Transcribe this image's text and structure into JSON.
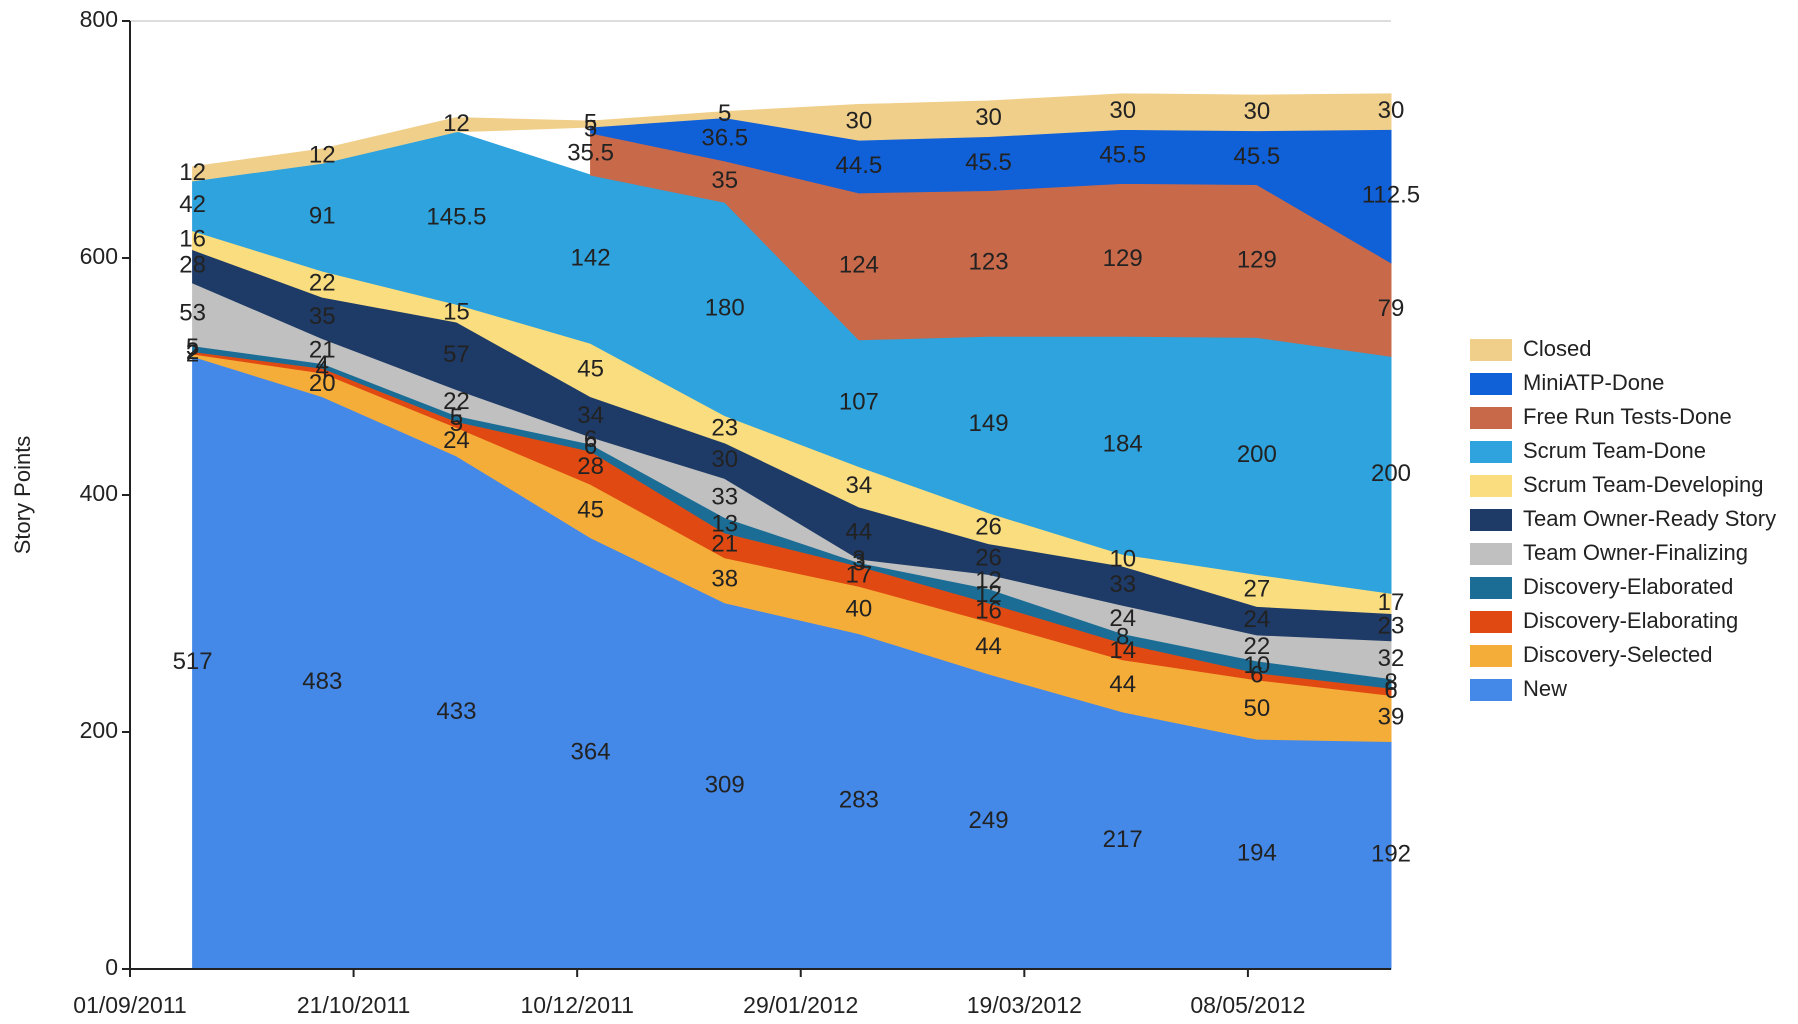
{
  "chart_data": {
    "type": "stacked-area",
    "y_label": "Story Points",
    "x": [
      "2011-09-15",
      "2011-10-14",
      "2011-11-13",
      "2011-12-13",
      "2012-01-12",
      "2012-02-11",
      "2012-03-11",
      "2012-04-10",
      "2012-05-10",
      "2012-06-09"
    ],
    "xlim": [
      "2011-09-01",
      "2012-06-09"
    ],
    "xticks": [
      {
        "value": "2011-09-01",
        "label": "01/09/2011"
      },
      {
        "value": "2011-10-21",
        "label": "21/10/2011"
      },
      {
        "value": "2011-12-10",
        "label": "10/12/2011"
      },
      {
        "value": "2012-01-29",
        "label": "29/01/2012"
      },
      {
        "value": "2012-03-19",
        "label": "19/03/2012"
      },
      {
        "value": "2012-05-08",
        "label": "08/05/2012"
      }
    ],
    "ylim": [
      0,
      800
    ],
    "yticks": [
      0,
      200,
      400,
      600,
      800
    ],
    "legend": "right",
    "series": [
      {
        "name": "New",
        "color": "#4589e8",
        "values": [
          517,
          483,
          433,
          364,
          309,
          283,
          249,
          217,
          194,
          192
        ]
      },
      {
        "name": "Discovery-Selected",
        "color": "#f5ad3a",
        "values": [
          2,
          20,
          24,
          45,
          38,
          40,
          44,
          44,
          50,
          39
        ]
      },
      {
        "name": "Discovery-Elaborating",
        "color": "#e04a12",
        "values": [
          2,
          4,
          5,
          28,
          21,
          17,
          16,
          14,
          6,
          6
        ]
      },
      {
        "name": "Discovery-Elaborated",
        "color": "#1b6d96",
        "values": [
          5,
          4,
          5,
          6,
          13,
          3,
          12,
          8,
          10,
          8
        ]
      },
      {
        "name": "Team Owner-Finalizing",
        "color": "#c0c0c0",
        "values": [
          53,
          21,
          22,
          6,
          33,
          3,
          12,
          24,
          22,
          32
        ]
      },
      {
        "name": "Team Owner-Ready Story",
        "color": "#1e3a66",
        "values": [
          28,
          35,
          57,
          34,
          30,
          44,
          26,
          33,
          24,
          23
        ]
      },
      {
        "name": "Scrum Team-Developing",
        "color": "#f9dd7e",
        "values": [
          16,
          22,
          15,
          45,
          23,
          34,
          26,
          10,
          27,
          17
        ]
      },
      {
        "name": "Scrum Team-Done",
        "color": "#2ea3dd",
        "values": [
          42,
          91,
          145.5,
          142,
          180,
          107,
          149,
          184,
          200,
          200
        ]
      },
      {
        "name": "Free Run Tests-Done",
        "color": "#c8694a",
        "values": [
          null,
          null,
          null,
          35.5,
          35,
          124,
          123,
          129,
          129,
          79
        ]
      },
      {
        "name": "MiniATP-Done",
        "color": "#1060d8",
        "values": [
          null,
          null,
          null,
          5,
          36.5,
          44.5,
          45.5,
          45.5,
          45.5,
          112.5
        ]
      },
      {
        "name": "Closed",
        "color": "#f0cf8a",
        "values": [
          12,
          12,
          12,
          5,
          5,
          30,
          30,
          30,
          30,
          30
        ]
      }
    ]
  }
}
